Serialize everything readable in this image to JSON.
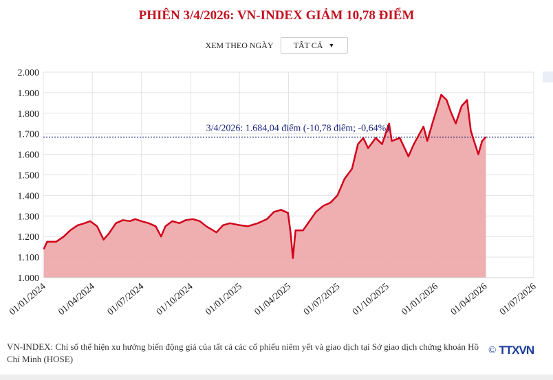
{
  "title": "PHIÊN 3/4/2026: VN-INDEX GIẢM 10,78 ĐIỂM",
  "filter": {
    "label": "XEM THEO NGÀY",
    "selected": "TẤT CẢ"
  },
  "footer": {
    "note": "VN-INDEX: Chỉ số thể hiện xu hướng biến động giá của tất cả các cổ phiếu niêm yết và giao dịch tại Sở giao dịch chứng khoán Hồ Chí Minh (HOSE)",
    "copyright": "©",
    "brand": "TTXVN"
  },
  "chart_data": {
    "type": "area",
    "title": "",
    "xlim": [
      "2024-01-01",
      "2026-07-01"
    ],
    "ylim": [
      1000,
      2000
    ],
    "yticks": [
      "1.000",
      "1.100",
      "1.200",
      "1.300",
      "1.400",
      "1.500",
      "1.600",
      "1.700",
      "1.800",
      "1.900",
      "2.000"
    ],
    "xticks": [
      "01/01/2024",
      "01/04/2024",
      "01/07/2024",
      "01/10/2024",
      "01/01/2025",
      "01/04/2025",
      "01/07/2025",
      "01/10/2025",
      "01/01/2026",
      "01/04/2026",
      "01/07/2026"
    ],
    "grid": true,
    "line_color": "#d0021b",
    "fill_color": "#eeaaab",
    "reference": {
      "value": 1684.04,
      "label": "3/4/2026: 1.684,04 điểm (-10,78 điểm; -0,64%)",
      "color": "#1a237e"
    },
    "series": [
      {
        "x": [
          "2024-01-02",
          "2024-01-08",
          "2024-01-25",
          "2024-02-08",
          "2024-02-20",
          "2024-03-05",
          "2024-03-18",
          "2024-03-28",
          "2024-04-10",
          "2024-04-22",
          "2024-05-02",
          "2024-05-15",
          "2024-05-28",
          "2024-06-10",
          "2024-06-20",
          "2024-07-01",
          "2024-07-15",
          "2024-07-28",
          "2024-08-07",
          "2024-08-15",
          "2024-08-28",
          "2024-09-10",
          "2024-09-22",
          "2024-10-05",
          "2024-10-18",
          "2024-10-30",
          "2024-11-18",
          "2024-11-30",
          "2024-12-13",
          "2025-01-01",
          "2025-01-15",
          "2025-02-03",
          "2025-02-20",
          "2025-03-05",
          "2025-03-18",
          "2025-03-31",
          "2025-04-05",
          "2025-04-09",
          "2025-04-14",
          "2025-04-28",
          "2025-05-10",
          "2025-05-22",
          "2025-06-05",
          "2025-06-18",
          "2025-07-01",
          "2025-07-14",
          "2025-07-28",
          "2025-08-08",
          "2025-08-18",
          "2025-08-27",
          "2025-09-10",
          "2025-09-22",
          "2025-10-05",
          "2025-10-10",
          "2025-10-25",
          "2025-11-10",
          "2025-11-20",
          "2025-12-08",
          "2025-12-15",
          "2025-12-25",
          "2026-01-10",
          "2026-01-20",
          "2026-01-28",
          "2026-02-06",
          "2026-02-17",
          "2026-02-27",
          "2026-03-06",
          "2026-03-12",
          "2026-03-20",
          "2026-03-27",
          "2026-04-03"
        ],
        "y": [
          1140,
          1175,
          1175,
          1200,
          1230,
          1255,
          1265,
          1275,
          1250,
          1185,
          1215,
          1265,
          1280,
          1275,
          1285,
          1275,
          1265,
          1250,
          1200,
          1250,
          1275,
          1265,
          1280,
          1285,
          1275,
          1250,
          1220,
          1255,
          1265,
          1255,
          1250,
          1265,
          1285,
          1320,
          1330,
          1315,
          1215,
          1095,
          1230,
          1230,
          1275,
          1320,
          1350,
          1365,
          1400,
          1480,
          1530,
          1650,
          1680,
          1630,
          1680,
          1650,
          1750,
          1665,
          1680,
          1590,
          1650,
          1735,
          1665,
          1755,
          1890,
          1865,
          1805,
          1750,
          1835,
          1865,
          1715,
          1665,
          1600,
          1665,
          1684.04
        ]
      }
    ]
  }
}
